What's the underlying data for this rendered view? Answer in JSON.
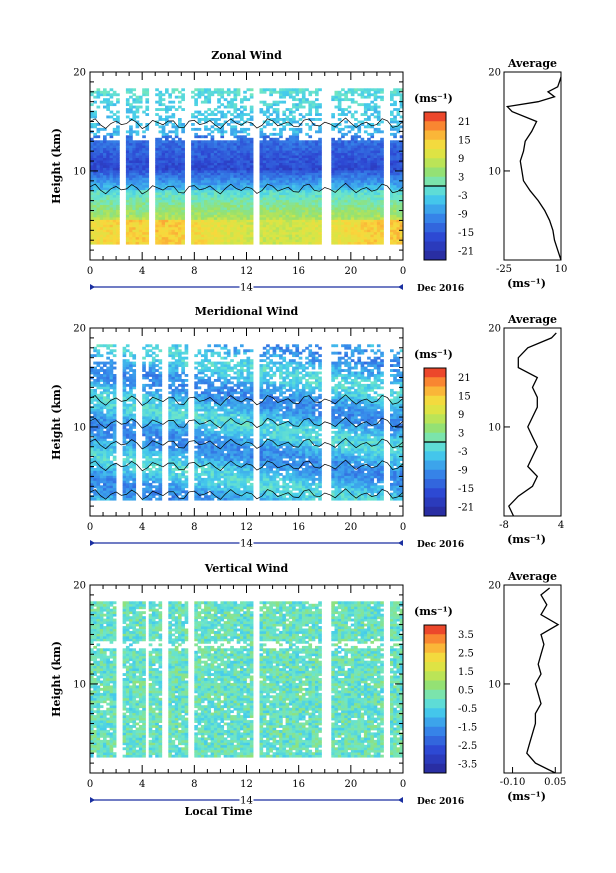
{
  "chart_data": [
    {
      "type": "heatmap",
      "title": "Zonal Wind",
      "ylabel": "Height (km)",
      "yticks": [
        "10",
        "20"
      ],
      "ylim": [
        1,
        20
      ],
      "xticks": [
        "0",
        "4",
        "8",
        "12",
        "16",
        "20",
        "0"
      ],
      "day_label": "14",
      "date_label": "Dec 2016",
      "xlabel": "",
      "colorbar": {
        "unit": "(ms⁻¹)",
        "ticks": [
          "21",
          "15",
          "9",
          "3",
          "-3",
          "-9",
          "-15",
          "-21"
        ],
        "range": [
          -24,
          24
        ],
        "zero_contour": 0
      },
      "profile": {
        "title": "Average",
        "xticks": [
          "-25",
          "10"
        ],
        "xunit": "(ms⁻¹)",
        "xlim": [
          -25,
          10
        ],
        "yticks": [
          "10",
          "20"
        ],
        "heights": [
          1,
          2,
          3,
          4,
          5,
          6,
          7,
          8,
          9,
          10,
          11,
          12,
          13,
          14,
          15,
          16,
          16.5,
          17,
          17.5,
          18,
          18.5,
          19,
          19.5
        ],
        "values": [
          10,
          8,
          6,
          5,
          3,
          0,
          -4,
          -9,
          -13,
          -14,
          -15,
          -13,
          -12,
          -8,
          -5,
          -20,
          -23,
          -4,
          6,
          2,
          8,
          9,
          10
        ]
      },
      "gaps_hours": [
        [
          2.2,
          2.7
        ],
        [
          4.4,
          5.0
        ],
        [
          7.2,
          7.7
        ],
        [
          12.4,
          12.9
        ],
        [
          17.7,
          18.4
        ],
        [
          22.5,
          23.0
        ]
      ]
    },
    {
      "type": "heatmap",
      "title": "Meridional Wind",
      "ylabel": "Height (km)",
      "yticks": [
        "10",
        "20"
      ],
      "ylim": [
        1,
        20
      ],
      "xticks": [
        "0",
        "4",
        "8",
        "12",
        "16",
        "20",
        "0"
      ],
      "day_label": "14",
      "date_label": "Dec 2016",
      "xlabel": "",
      "colorbar": {
        "unit": "(ms⁻¹)",
        "ticks": [
          "21",
          "15",
          "9",
          "3",
          "-3",
          "-9",
          "-15",
          "-21"
        ],
        "range": [
          -24,
          24
        ],
        "zero_contour": 0
      },
      "profile": {
        "title": "Average",
        "xticks": [
          "-8",
          "4"
        ],
        "xunit": "(ms⁻¹)",
        "xlim": [
          -8,
          4
        ],
        "yticks": [
          "10",
          "20"
        ],
        "heights": [
          1,
          2,
          3,
          4,
          5,
          6,
          7,
          8,
          9,
          10,
          11,
          12,
          13,
          14,
          15,
          16,
          17,
          18,
          19,
          19.5
        ],
        "values": [
          -6,
          -7,
          -5,
          -2,
          -1,
          -3,
          -2,
          -1,
          -2,
          -3,
          -2,
          -1,
          -1,
          -2,
          -1,
          -5,
          -5,
          -3,
          2,
          3
        ]
      },
      "gaps_hours": [
        [
          2.0,
          2.4
        ],
        [
          3.4,
          3.8
        ],
        [
          5.3,
          5.8
        ],
        [
          7.3,
          7.8
        ],
        [
          12.4,
          12.9
        ],
        [
          17.7,
          18.4
        ],
        [
          22.5,
          23.0
        ]
      ]
    },
    {
      "type": "heatmap",
      "title": "Vertical Wind",
      "ylabel": "Height (km)",
      "yticks": [
        "10",
        "20"
      ],
      "ylim": [
        1,
        20
      ],
      "xticks": [
        "0",
        "4",
        "8",
        "12",
        "16",
        "20",
        "0"
      ],
      "day_label": "14",
      "date_label": "Dec 2016",
      "xlabel": "Local Time",
      "colorbar": {
        "unit": "(ms⁻¹)",
        "ticks": [
          "3.5",
          "2.5",
          "1.5",
          "0.5",
          "-0.5",
          "-1.5",
          "-2.5",
          "-3.5"
        ],
        "range": [
          -4,
          4
        ],
        "zero_contour": null
      },
      "profile": {
        "title": "Average",
        "xticks": [
          "-0.10",
          "0.05"
        ],
        "xunit": "(ms⁻¹)",
        "xlim": [
          -0.13,
          0.07
        ],
        "yticks": [
          "10",
          "20"
        ],
        "heights": [
          1,
          2,
          3,
          4,
          5,
          6,
          7,
          8,
          9,
          10,
          11,
          12,
          13,
          14,
          15,
          16,
          17,
          18,
          19,
          19.7
        ],
        "values": [
          0.05,
          -0.02,
          -0.05,
          -0.04,
          -0.03,
          -0.02,
          -0.02,
          0.0,
          -0.01,
          -0.02,
          0.0,
          -0.01,
          0.0,
          0.01,
          0.0,
          0.06,
          0.0,
          0.02,
          0.0,
          0.03
        ]
      },
      "gaps_hours": [
        [
          2.0,
          2.4
        ],
        [
          4.1,
          4.5
        ],
        [
          5.5,
          6.0
        ],
        [
          7.4,
          7.8
        ],
        [
          12.4,
          12.9
        ],
        [
          17.7,
          18.4
        ],
        [
          22.5,
          23.0
        ]
      ]
    }
  ]
}
